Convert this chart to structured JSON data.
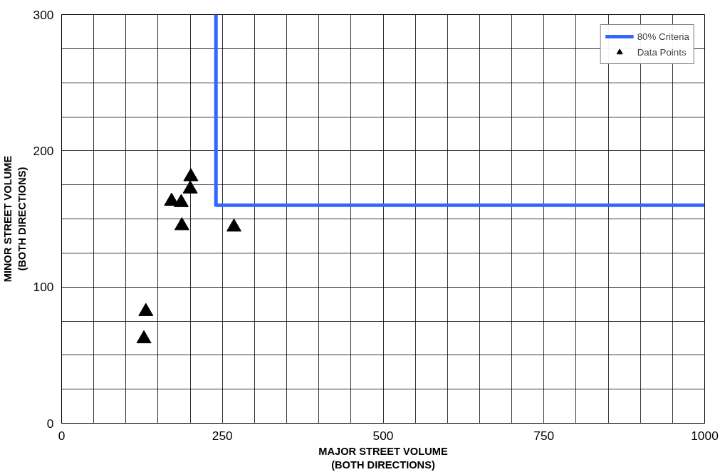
{
  "chart_data": {
    "type": "scatter",
    "xlabel": "MAJOR STREET VOLUME\n(BOTH DIRECTIONS)",
    "ylabel": "MINOR STREET VOLUME\n(BOTH DIRECTIONS)",
    "xlim": [
      0,
      1000
    ],
    "ylim": [
      0,
      300
    ],
    "xticks": [
      0,
      {
        "value": 50,
        "label": null
      },
      {
        "value": 100,
        "label": null
      },
      {
        "value": 150,
        "label": null
      },
      {
        "value": 200,
        "label": null
      },
      250,
      {
        "value": 300,
        "label": null
      },
      {
        "value": 350,
        "label": null
      },
      {
        "value": 400,
        "label": null
      },
      {
        "value": 450,
        "label": null
      },
      500,
      {
        "value": 550,
        "label": null
      },
      {
        "value": 600,
        "label": null
      },
      {
        "value": 650,
        "label": null
      },
      {
        "value": 700,
        "label": null
      },
      750,
      {
        "value": 800,
        "label": null
      },
      {
        "value": 850,
        "label": null
      },
      {
        "value": 900,
        "label": null
      },
      {
        "value": 950,
        "label": null
      },
      1000
    ],
    "yticks": [
      0,
      {
        "value": 25,
        "label": null
      },
      {
        "value": 50,
        "label": null
      },
      {
        "value": 75,
        "label": null
      },
      100,
      {
        "value": 125,
        "label": null
      },
      {
        "value": 150,
        "label": null
      },
      {
        "value": 175,
        "label": null
      },
      200,
      {
        "value": 225,
        "label": null
      },
      {
        "value": 250,
        "label": null
      },
      {
        "value": 275,
        "label": null
      },
      300
    ],
    "grid": true,
    "legend": "top right",
    "series": [
      {
        "name": "80% Criteria",
        "type": "line",
        "color": "#3366ff",
        "marker": "none",
        "line_style": "solid",
        "x": [
          240,
          240,
          1000
        ],
        "values": [
          300,
          160,
          160
        ]
      },
      {
        "name": "Data Points",
        "color": "#000000",
        "marker": "triangle",
        "x": [
          201,
          200,
          171,
          186,
          187,
          268,
          131,
          128
        ],
        "values": [
          181,
          172,
          163,
          162,
          145,
          144,
          82,
          62
        ]
      }
    ]
  }
}
